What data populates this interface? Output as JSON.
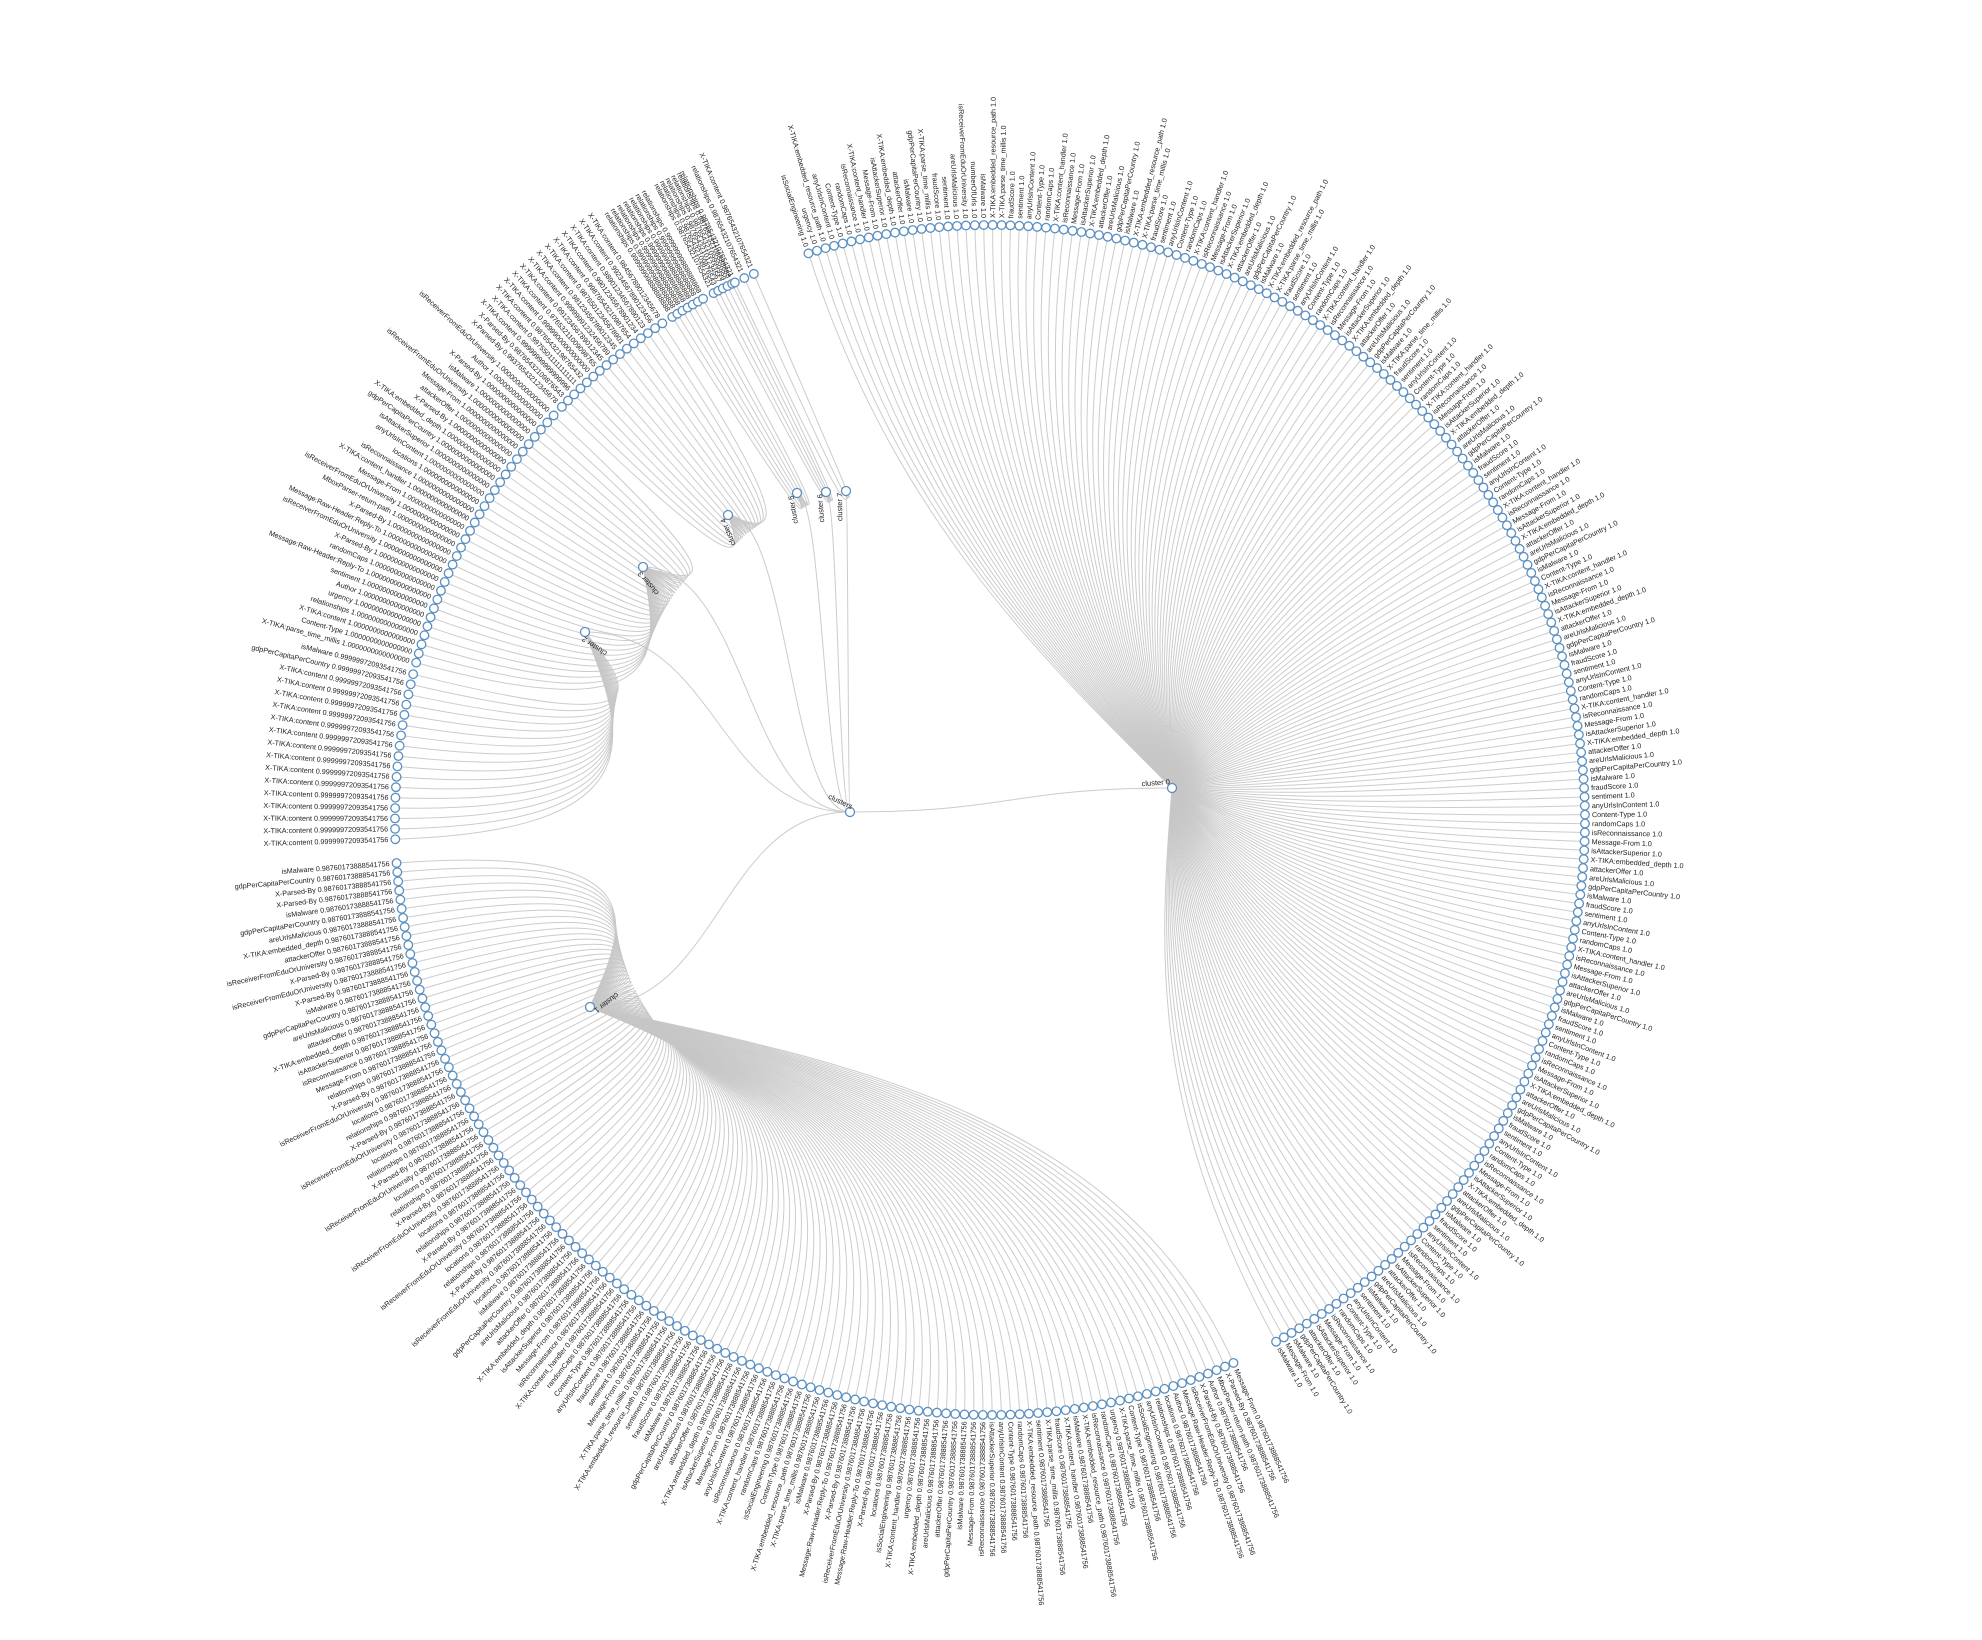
{
  "colors": {
    "link": "#c6c6c6",
    "node_stroke": "#5b8fc0",
    "node_fill": "#ffffff",
    "text": "#222222"
  },
  "tree": {
    "root_label": "clusters",
    "clusters": [
      {
        "label": "cluster 0",
        "values": [
          "1.0"
        ],
        "keys": [
          "isSocialEngineering",
          "urgency",
          "X-TIKA:embedded_resource_path",
          "anyUrlsInContent",
          "Content-Type",
          "randomCaps",
          "isReconnaissance",
          "X-TIKA:content_handler",
          "Message-From",
          "isAttackerSuperior",
          "X-TIKA:embedded_depth",
          "attackerOffer",
          "isMalware",
          "gdpPerCapitaPerCountry",
          "X-TIKA:parse_time_millis",
          "fraudScore",
          "sentiment",
          "areUrlsMalicious",
          "isReceiverFromEduOrUniversity",
          "numberOfUrls",
          "isMalware",
          "X-TIKA:embedded_resource_path",
          "X-TIKA:parse_time_millis",
          "fraudScore",
          "sentiment",
          "anyUrlsInContent",
          "Content-Type",
          "randomCaps",
          "X-TIKA:content_handler",
          "isReconnaissance",
          "Message-From",
          "isAttackerSuperior",
          "X-TIKA:embedded_depth",
          "attackerOffer",
          "areUrlsMalicious",
          "gdpPerCapitaPerCountry",
          "isMalware",
          "X-TIKA:embedded_resource_path",
          "X-TIKA:parse_time_millis",
          "fraudScore",
          "sentiment",
          "anyUrlsInContent",
          "Content-Type",
          "randomCaps",
          "X-TIKA:content_handler",
          "isReconnaissance",
          "Message-From",
          "isAttackerSuperior",
          "X-TIKA:embedded_depth",
          "attackerOffer",
          "areUrlsMalicious",
          "gdpPerCapitaPerCountry",
          "isMalware",
          "X-TIKA:embedded_resource_path",
          "X-TIKA:parse_time_millis",
          "fraudScore",
          "sentiment",
          "anyUrlsInContent",
          "Content-Type",
          "randomCaps",
          "X-TIKA:content_handler",
          "isReconnaissance",
          "Message-From",
          "isAttackerSuperior",
          "X-TIKA:embedded_depth",
          "attackerOffer",
          "areUrlsMalicious",
          "gdpPerCapitaPerCountry",
          "isMalware",
          "X-TIKA:parse_time_millis",
          "fraudScore",
          "sentiment",
          "anyUrlsInContent",
          "Content-Type",
          "randomCaps",
          "X-TIKA:content_handler",
          "isReconnaissance",
          "Message-From",
          "isAttackerSuperior",
          "X-TIKA:embedded_depth",
          "attackerOffer",
          "areUrlsMalicious",
          "gdpPerCapitaPerCountry",
          "isMalware",
          "fraudScore",
          "sentiment",
          "anyUrlsInContent",
          "Content-Type",
          "randomCaps",
          "X-TIKA:content_handler",
          "isReconnaissance",
          "Message-From",
          "isAttackerSuperior",
          "X-TIKA:embedded_depth",
          "attackerOffer",
          "areUrlsMalicious",
          "gdpPerCapitaPerCountry",
          "isMalware",
          "Content-Type",
          "X-TIKA:content_handler",
          "isReconnaissance",
          "Message-From",
          "isAttackerSuperior",
          "X-TIKA:embedded_depth",
          "attackerOffer",
          "areUrlsMalicious",
          "gdpPerCapitaPerCountry",
          "isMalware",
          "fraudScore",
          "sentiment",
          "anyUrlsInContent",
          "Content-Type",
          "randomCaps",
          "X-TIKA:content_handler",
          "isReconnaissance",
          "Message-From",
          "isAttackerSuperior",
          "X-TIKA:embedded_depth",
          "attackerOffer",
          "areUrlsMalicious",
          "gdpPerCapitaPerCountry",
          "isMalware",
          "fraudScore",
          "sentiment",
          "anyUrlsInContent",
          "Content-Type",
          "randomCaps",
          "isReconnaissance",
          "Message-From",
          "isAttackerSuperior",
          "X-TIKA:embedded_depth",
          "attackerOffer",
          "areUrlsMalicious",
          "gdpPerCapitaPerCountry",
          "isMalware",
          "fraudScore",
          "sentiment",
          "anyUrlsInContent",
          "Content-Type",
          "randomCaps",
          "X-TIKA:content_handler",
          "isReconnaissance",
          "Message-From",
          "isAttackerSuperior",
          "attackerOffer",
          "areUrlsMalicious",
          "gdpPerCapitaPerCountry",
          "isMalware",
          "fraudScore",
          "sentiment",
          "anyUrlsInContent",
          "Content-Type",
          "randomCaps",
          "isReconnaissance",
          "Message-From",
          "isAttackerSuperior",
          "X-TIKA:embedded_depth",
          "attackerOffer",
          "areUrlsMalicious",
          "gdpPerCapitaPerCountry",
          "isMalware",
          "fraudScore",
          "sentiment",
          "anyUrlsInContent",
          "Content-Type",
          "randomCaps",
          "isReconnaissance",
          "Message-From",
          "isAttackerSuperior",
          "X-TIKA:embedded_depth",
          "attackerOffer",
          "areUrlsMalicious",
          "gdpPerCapitaPerCountry",
          "isMalware",
          "fraudScore",
          "sentiment",
          "anyUrlsInContent",
          "Content-Type",
          "randomCaps",
          "isReconnaissance",
          "Message-From",
          "isAttackerSuperior",
          "attackerOffer",
          "areUrlsMalicious",
          "gdpPerCapitaPerCountry",
          "isMalware",
          "sentiment",
          "anyUrlsInContent",
          "Content-Type",
          "randomCaps",
          "isReconnaissance",
          "Message-From",
          "isAttackerSuperior",
          "attackerOffer",
          "gdpPerCapitaPerCountry",
          "isMalware",
          "Message-From",
          "isMalware"
        ]
      },
      {
        "label": "cluster 1",
        "values": [
          "0.98760173888541756"
        ],
        "keys": [
          "Message-From",
          "X-Parsed-By",
          "MboxParser-return-path",
          "Author",
          "X-Parsed-By",
          "isReceiverFromEduOrUniversity",
          "Message:Raw-Header:Reply-To",
          "Author",
          "locations",
          "relationships",
          "anyUrlsInContent",
          "isSocialEngineering",
          "Content-Type",
          "X-TIKA:parse_time_millis",
          "urgency",
          "randomCaps",
          "isReconnaissance",
          "X-TIKA:embedded_resource_path",
          "isMalware",
          "X-TIKA:content_handler",
          "fraudScore",
          "X-TIKA:parse_time_millis",
          "sentiment",
          "X-TIKA:embedded_resource_path",
          "randomCaps",
          "Content-Type",
          "anyUrlsInContent",
          "isAttackerSuperior",
          "isReconnaissance",
          "Message-From",
          "isMalware",
          "gdpPerCapitaPerCountry",
          "attackerOffer",
          "areUrlsMalicious",
          "X-TIKA:embedded_depth",
          "urgency",
          "X-TIKA:content_handler",
          "isSocialEngineering",
          "locations",
          "X-Parsed-By",
          "Message:Raw-Header:Reply-To",
          "isReceiverFromEduOrUniversity",
          "X-Parsed-By",
          "Message:Raw-Header:Reply-To",
          "X-Parsed-By",
          "isMalware",
          "X-TIKA:parse_time_millis",
          "X-TIKA:embedded_resource_path",
          "Content-Type",
          "isSocialEngineering",
          "randomCaps",
          "X-TIKA:content_handler",
          "isReconnaissance",
          "anyUrlsInContent",
          "Message-From",
          "isAttackerSuperior",
          "X-TIKA:embedded_depth",
          "attackerOffer",
          "areUrlsMalicious",
          "gdpPerCapitaPerCountry",
          "isMalware",
          "fraudScore",
          "sentiment",
          "X-TIKA:embedded_resource_path",
          "X-TIKA:parse_time_millis",
          "Message-From",
          "sentiment",
          "fraudScore",
          "anyUrlsInContent",
          "Content-Type",
          "randomCaps",
          "X-TIKA:content_handler",
          "isReconnaissance",
          "Message-From",
          "isAttackerSuperior",
          "X-TIKA:embedded_depth",
          "attackerOffer",
          "areUrlsMalicious",
          "gdpPerCapitaPerCountry",
          "isMalware",
          "locations",
          "isReceiverFromEduOrUniversity",
          "X-Parsed-By",
          "relationships",
          "locations",
          "isReceiverFromEduOrUniversity",
          "X-Parsed-By",
          "relationships",
          "locations",
          "isReceiverFromEduOrUniversity",
          "X-Parsed-By",
          "relationships",
          "locations",
          "isReceiverFromEduOrUniversity",
          "X-Parsed-By",
          "relationships",
          "locations",
          "isReceiverFromEduOrUniversity",
          "X-Parsed-By",
          "relationships",
          "locations",
          "isReceiverFromEduOrUniversity",
          "X-Parsed-By",
          "relationships",
          "Message-From",
          "isReconnaissance",
          "isAttackerSuperior",
          "X-TIKA:embedded_depth",
          "attackerOffer",
          "areUrlsMalicious",
          "gdpPerCapitaPerCountry",
          "isMalware",
          "X-Parsed-By",
          "isReceiverFromEduOrUniversity",
          "X-Parsed-By",
          "isReceiverFromEduOrUniversity",
          "attackerOffer",
          "X-TIKA:embedded_depth",
          "areUrlsMalicious",
          "gdpPerCapitaPerCountry",
          "isMalware",
          "X-Parsed-By",
          "X-Parsed-By",
          "gdpPerCapitaPerCountry",
          "isMalware"
        ]
      },
      {
        "label": "cluster 2",
        "values": [
          "0.99999972093541756"
        ],
        "keys": [
          "X-TIKA:content",
          "X-TIKA:content",
          "X-TIKA:content",
          "X-TIKA:content",
          "X-TIKA:content",
          "X-TIKA:content",
          "X-TIKA:content",
          "X-TIKA:content",
          "X-TIKA:content",
          "X-TIKA:content",
          "X-TIKA:content",
          "X-TIKA:content",
          "X-TIKA:content",
          "X-TIKA:content",
          "X-TIKA:content",
          "gdpPerCapitaPerCountry",
          "isMalware"
        ]
      },
      {
        "label": "cluster 3",
        "values": [
          "1.0000000000000000"
        ],
        "keys": [
          "X-TIKA:parse_time_millis",
          "Content-Type",
          "X-TIKA:content",
          "relationships",
          "urgency",
          "Author",
          "sentiment",
          "Message:Raw-Header:Reply-To",
          "randomCaps",
          "X-Parsed-By",
          "isReceiverFromEduOrUniversity",
          "Message:Raw-Header:Reply-To",
          "X-Parsed-By",
          "MboxParser-return-path",
          "isReceiverFromEduOrUniversity",
          "Message-From",
          "X-TIKA:content_handler",
          "isReconnaissance",
          "locations",
          "anyUrlsInContent",
          "isAttackerSuperior",
          "gdpPerCapitaPerCountry",
          "X-TIKA:embedded_depth",
          "X-Parsed-By",
          "attackerOffer",
          "Message-From",
          "isReceiverFromEduOrUniversity",
          "isMalware",
          "X-Parsed-By",
          "Author",
          "isReceiverFromEduOrUniversity"
        ]
      },
      {
        "label": "cluster 4",
        "values": [
          "0.99376543212345678",
          "0.98765432109876543",
          "0.99999999999999996",
          "0.99755011111111111",
          "0.98765432198765432",
          "0.99999000000000000",
          "0.97653211009098765",
          "0.99123456789012345",
          "0.99999991232456789",
          "0.98123456789012345",
          "0.98765012345678901",
          "0.99876543210987654",
          "0.99012345678901234",
          "0.98901234567890123",
          "0.99234567890123456",
          "0.98456789012345678"
        ],
        "keys": [
          "X-Parsed-By",
          "X-Parsed-By",
          "X-TIKA:content",
          "X-TIKA:content",
          "X-TIKA:content",
          "X-TIKA:content",
          "X-TIKA:content",
          "X-TIKA:content",
          "X-TIKA:content",
          "X-TIKA:content",
          "X-TIKA:content",
          "X-TIKA:content",
          "X-TIKA:content",
          "X-TIKA:content",
          "X-TIKA:content",
          "X-TIKA:content"
        ]
      },
      {
        "label": "cluster 5",
        "values": [
          "0.99999999888888888"
        ],
        "keys": [
          "relationships",
          "relationships",
          "relationships",
          "relationships",
          "relationships",
          "relationships",
          "relationships"
        ]
      },
      {
        "label": "cluster 6",
        "values": [
          "0.98765432107654321",
          "0.98765432109876543",
          "0.98765432101234567",
          "0.98765432109999999",
          "0.98765432108888888"
        ],
        "keys": [
          "relationships",
          "relationships",
          "relationships",
          "relationships",
          "relationships"
        ]
      },
      {
        "label": "cluster 7",
        "values": [
          "0.98765432107654321"
        ],
        "keys": [
          "relationships",
          "relationships",
          "X-TIKA:content"
        ]
      }
    ]
  }
}
